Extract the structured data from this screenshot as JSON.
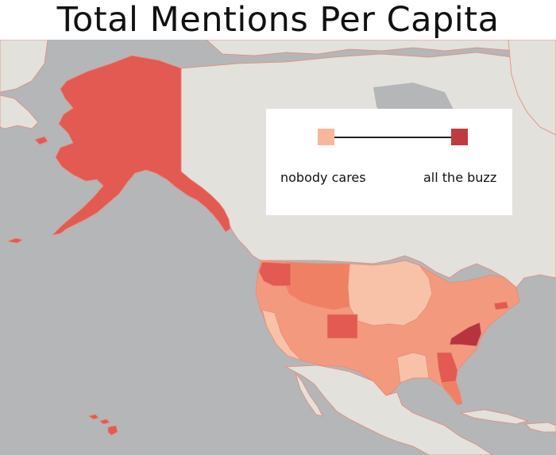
{
  "title": "Total Mentions Per Capita",
  "legend": {
    "low_label": "nobody cares",
    "high_label": "all the buzz",
    "low_color": "#f8b79b",
    "high_color": "#bf3b3f"
  },
  "colors": {
    "ocean": "#b4b6b8",
    "land": "#e2e1dc",
    "border": "#c8c7c2",
    "level_1": "#f7c2a8",
    "level_2": "#f39a7e",
    "level_3": "#f08064",
    "level_4": "#e35a52",
    "level_5": "#b83340"
  },
  "regions": [
    {
      "name": "Alaska",
      "level": 4
    },
    {
      "name": "Hawaii",
      "level": 4
    },
    {
      "name": "Washington",
      "level": 4
    },
    {
      "name": "Colorado",
      "level": 4
    },
    {
      "name": "Georgia",
      "level": 4
    },
    {
      "name": "Virginia",
      "level": 5
    },
    {
      "name": "Maryland",
      "level": 5
    },
    {
      "name": "Massachusetts",
      "level": 4
    },
    {
      "name": "Florida",
      "level": 3
    }
  ]
}
